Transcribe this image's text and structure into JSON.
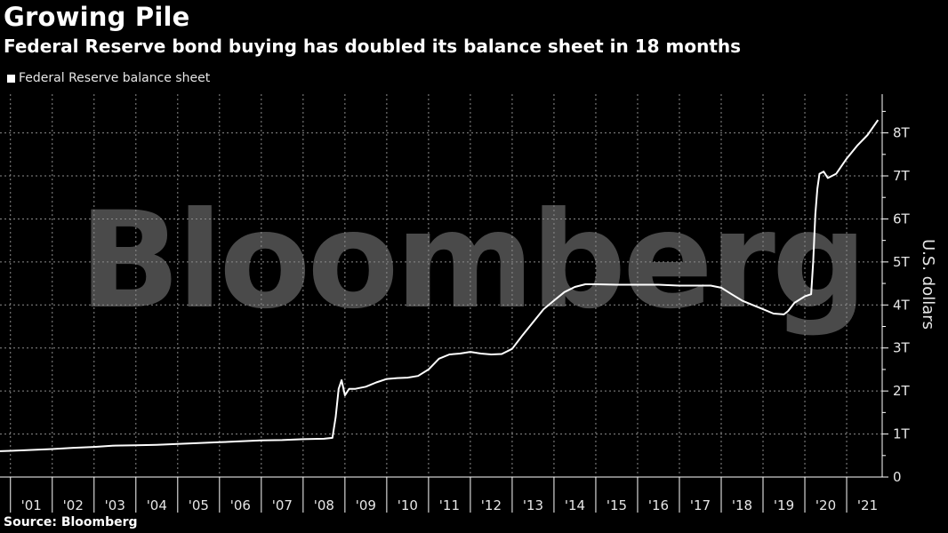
{
  "title": "Growing Pile",
  "subtitle": "Federal Reserve bond buying has doubled its balance sheet in 18 months",
  "source": "Source: Bloomberg",
  "watermark": "Bloomberg",
  "colors": {
    "background": "#000000",
    "line": "#ffffff",
    "grid": "#8c8c8c",
    "watermark": "#4a4a4a"
  },
  "chart_data": {
    "type": "line",
    "title": "Growing Pile",
    "subtitle": "Federal Reserve bond buying has doubled its balance sheet in 18 months",
    "ylabel": "U.S. dollars",
    "xlabel": "",
    "y_axis_side": "right",
    "ylim": [
      0,
      8.9
    ],
    "y_ticks": [
      0,
      1,
      2,
      3,
      4,
      5,
      6,
      7,
      8
    ],
    "y_tick_labels": [
      "0",
      "1T",
      "2T",
      "3T",
      "4T",
      "5T",
      "6T",
      "7T",
      "8T"
    ],
    "x_tick_labels": [
      "'01",
      "'02",
      "'03",
      "'04",
      "'05",
      "'06",
      "'07",
      "'08",
      "'09",
      "'10",
      "'11",
      "'12",
      "'13",
      "'14",
      "'15",
      "'16",
      "'17",
      "'18",
      "'19",
      "'20",
      "'21"
    ],
    "x_tick_years": [
      2001,
      2002,
      2003,
      2004,
      2005,
      2006,
      2007,
      2008,
      2009,
      2010,
      2011,
      2012,
      2013,
      2014,
      2015,
      2016,
      2017,
      2018,
      2019,
      2020,
      2021
    ],
    "xlim": [
      2000.75,
      2021.85
    ],
    "grid": true,
    "legend_position": "top-left",
    "series": [
      {
        "name": "Federal Reserve balance sheet",
        "color": "#ffffff",
        "x": [
          2000.75,
          2001.0,
          2001.5,
          2002.0,
          2002.5,
          2003.0,
          2003.5,
          2004.0,
          2004.5,
          2005.0,
          2005.5,
          2006.0,
          2006.5,
          2007.0,
          2007.5,
          2008.0,
          2008.5,
          2008.7,
          2008.78,
          2008.85,
          2008.92,
          2009.0,
          2009.1,
          2009.25,
          2009.5,
          2009.75,
          2010.0,
          2010.25,
          2010.5,
          2010.75,
          2011.0,
          2011.25,
          2011.5,
          2011.75,
          2012.0,
          2012.25,
          2012.5,
          2012.75,
          2013.0,
          2013.25,
          2013.5,
          2013.75,
          2014.0,
          2014.25,
          2014.5,
          2014.75,
          2015.0,
          2015.5,
          2016.0,
          2016.5,
          2017.0,
          2017.5,
          2017.75,
          2018.0,
          2018.25,
          2018.5,
          2018.75,
          2019.0,
          2019.25,
          2019.5,
          2019.6,
          2019.75,
          2020.0,
          2020.15,
          2020.2,
          2020.25,
          2020.3,
          2020.35,
          2020.45,
          2020.55,
          2020.75,
          2021.0,
          2021.25,
          2021.5,
          2021.75
        ],
        "y": [
          0.6,
          0.61,
          0.63,
          0.65,
          0.68,
          0.7,
          0.73,
          0.74,
          0.75,
          0.77,
          0.79,
          0.81,
          0.83,
          0.85,
          0.86,
          0.88,
          0.89,
          0.91,
          1.4,
          2.05,
          2.25,
          1.9,
          2.05,
          2.05,
          2.1,
          2.2,
          2.28,
          2.3,
          2.31,
          2.35,
          2.5,
          2.75,
          2.85,
          2.87,
          2.91,
          2.87,
          2.85,
          2.86,
          2.98,
          3.3,
          3.6,
          3.9,
          4.1,
          4.3,
          4.42,
          4.48,
          4.48,
          4.47,
          4.47,
          4.47,
          4.45,
          4.45,
          4.45,
          4.4,
          4.25,
          4.1,
          4.0,
          3.9,
          3.8,
          3.78,
          3.86,
          4.05,
          4.2,
          4.25,
          5.0,
          6.1,
          6.7,
          7.05,
          7.1,
          6.95,
          7.05,
          7.4,
          7.7,
          7.95,
          8.3
        ]
      }
    ]
  }
}
